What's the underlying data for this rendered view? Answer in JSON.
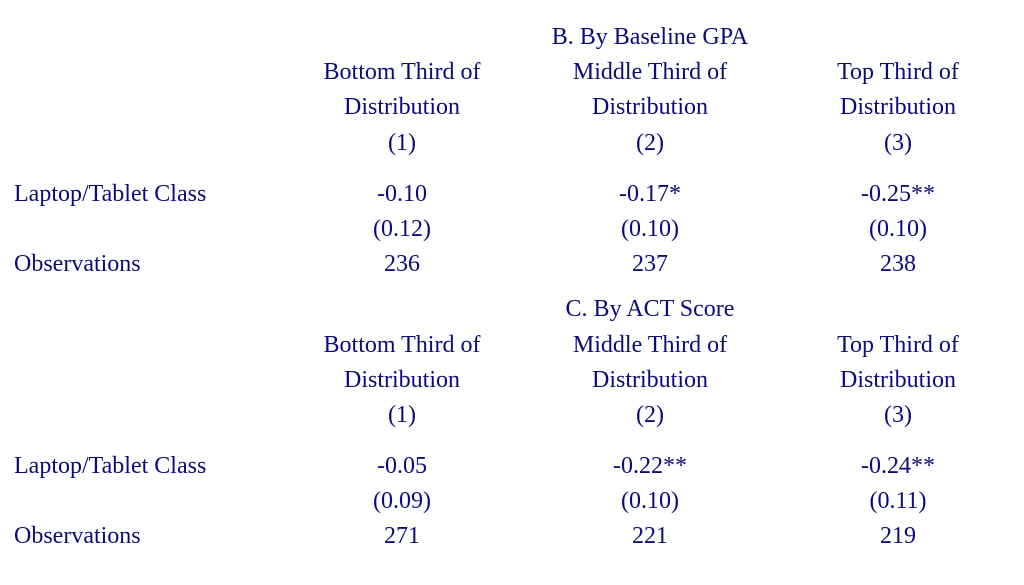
{
  "typography": {
    "font_family": "Times New Roman",
    "font_size_pt": 18,
    "text_color": "#0b0b7a",
    "background_color": "#ffffff"
  },
  "panels": {
    "B": {
      "title": "B. By Baseline GPA",
      "columns": [
        {
          "header_top": "Bottom Third of",
          "header_bottom": "Distribution",
          "number": "(1)"
        },
        {
          "header_top": "Middle Third of",
          "header_bottom": "Distribution",
          "number": "(2)"
        },
        {
          "header_top": "Top Third of",
          "header_bottom": "Distribution",
          "number": "(3)"
        }
      ],
      "rows": {
        "effect_label": "Laptop/Tablet Class",
        "effect": [
          "-0.10",
          "-0.17*",
          "-0.25**"
        ],
        "se": [
          "(0.12)",
          "(0.10)",
          "(0.10)"
        ],
        "obs_label": "Observations",
        "obs": [
          "236",
          "237",
          "238"
        ]
      }
    },
    "C": {
      "title": "C. By ACT Score",
      "columns": [
        {
          "header_top": "Bottom Third of",
          "header_bottom": "Distribution",
          "number": "(1)"
        },
        {
          "header_top": "Middle Third of",
          "header_bottom": "Distribution",
          "number": "(2)"
        },
        {
          "header_top": "Top Third of",
          "header_bottom": "Distribution",
          "number": "(3)"
        }
      ],
      "rows": {
        "effect_label": "Laptop/Tablet Class",
        "effect": [
          "-0.05",
          "-0.22**",
          "-0.24**"
        ],
        "se": [
          "(0.09)",
          "(0.10)",
          "(0.11)"
        ],
        "obs_label": "Observations",
        "obs": [
          "271",
          "221",
          "219"
        ]
      }
    }
  }
}
